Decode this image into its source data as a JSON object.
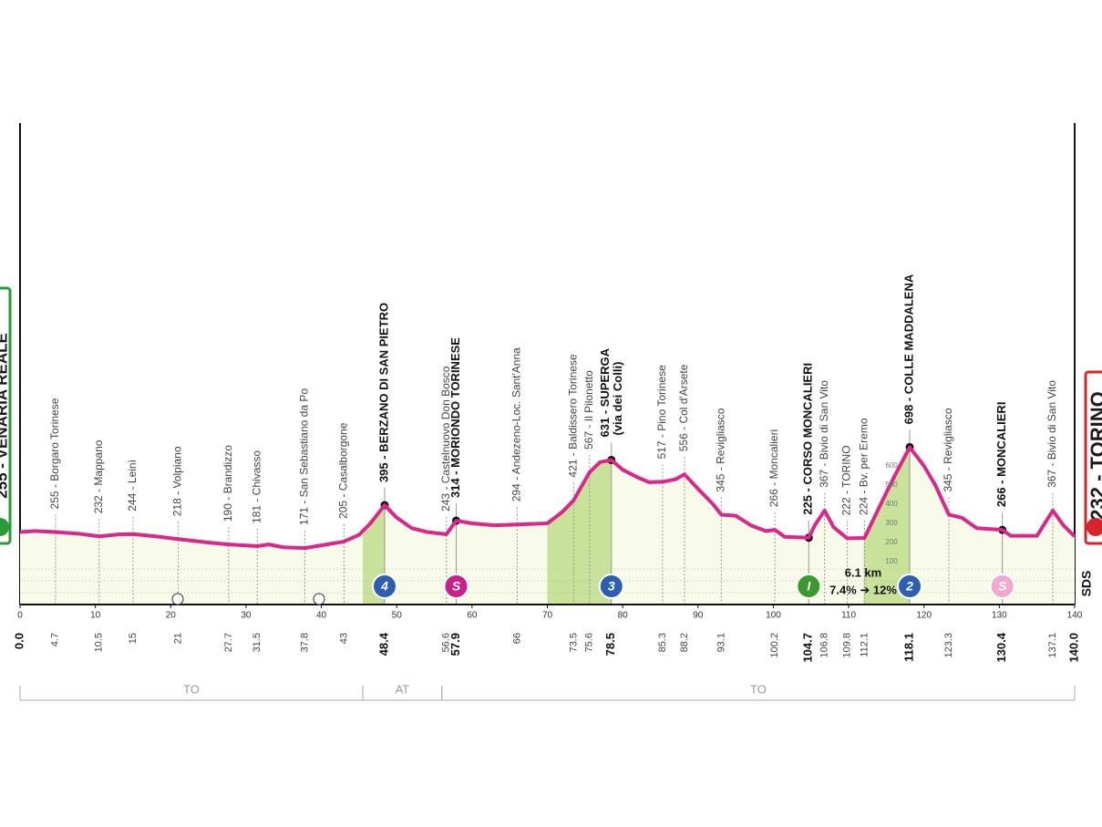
{
  "chart_data": {
    "type": "line",
    "start_name": "255 - VENARIA REALE",
    "finish_name": "232 - TORINO",
    "logo": "SDS",
    "xlim": [
      0,
      140
    ],
    "xticks": [
      0,
      10,
      20,
      30,
      40,
      50,
      60,
      70,
      80,
      90,
      100,
      110,
      120,
      130,
      140
    ],
    "alt_ticks": [
      100,
      200,
      300,
      400,
      500,
      600
    ],
    "line_color": "#d9278a",
    "profile": {
      "x": [
        0,
        2,
        4.7,
        8,
        10.5,
        13,
        15,
        18,
        21,
        25,
        27.7,
        31.5,
        33,
        35,
        37.8,
        40,
        43,
        45,
        46.5,
        48.4,
        50,
        52,
        54,
        56.6,
        57.9,
        60,
        63,
        66,
        70,
        72,
        73.5,
        75.6,
        77,
        78.5,
        80,
        82,
        83.5,
        85.3,
        87,
        88.2,
        90,
        92,
        93.1,
        95,
        97,
        99,
        100.2,
        101.5,
        104.7,
        105.5,
        106.8,
        108,
        109.8,
        112.1,
        114,
        116,
        118.1,
        120,
        121.5,
        123.3,
        125,
        127,
        130.4,
        131.5,
        135,
        137.1,
        138.5,
        140
      ],
      "values": [
        255,
        260,
        255,
        245,
        232,
        242,
        244,
        232,
        218,
        200,
        190,
        181,
        190,
        175,
        171,
        185,
        205,
        240,
        300,
        395,
        330,
        275,
        255,
        243,
        314,
        300,
        290,
        294,
        300,
        360,
        421,
        567,
        620,
        631,
        580,
        540,
        515,
        517,
        530,
        556,
        480,
        400,
        345,
        340,
        290,
        260,
        266,
        230,
        225,
        290,
        367,
        280,
        222,
        224,
        380,
        540,
        698,
        600,
        500,
        345,
        330,
        275,
        266,
        235,
        235,
        367,
        290,
        232
      ]
    },
    "climbs": [
      {
        "from": 45.5,
        "to": 48.4
      },
      {
        "from": 70,
        "to": 78.5
      },
      {
        "from": 112,
        "to": 118.1
      }
    ],
    "waypoints": [
      {
        "km": {
          "value": 0,
          "label": "0.0"
        },
        "bold": true
      },
      {
        "km": 4.7,
        "label": "255 - Borgaro Torinese"
      },
      {
        "km": 10.5,
        "label": "232 - Mappano"
      },
      {
        "km": 15.0,
        "label": "244 - Leinì"
      },
      {
        "km": 21.0,
        "label": "218 - Volpiano"
      },
      {
        "km": 27.7,
        "label": "190 - Brandizzo"
      },
      {
        "km": 31.5,
        "label": "181 - Chivasso"
      },
      {
        "km": 37.8,
        "label": "171 - San Sebastiano da Po"
      },
      {
        "km": 43.0,
        "label": "205 - Casalborgone"
      },
      {
        "km": 48.4,
        "label": "395 - BERZANO DI SAN PIETRO",
        "bold": true
      },
      {
        "km": 56.6,
        "label": "243 - Castelnuovo Don Bosco"
      },
      {
        "km": 57.9,
        "label": "314 - MORIONDO TORINESE",
        "bold": true
      },
      {
        "km": 66.0,
        "label": "294 - Andezeno-Loc. Sant'Anna"
      },
      {
        "km": 73.5,
        "label": "421 - Baldissero Torinese"
      },
      {
        "km": 75.6,
        "label": "567 - Il Pilonetto"
      },
      {
        "km": 78.5,
        "label": "631 - SUPERGA",
        "sub": "(via dei Colli)",
        "bold": true
      },
      {
        "km": 85.3,
        "label": "517 - Pino Torinese"
      },
      {
        "km": 88.2,
        "label": "556 - Col d'Arsete"
      },
      {
        "km": 93.1,
        "label": "345 - Revigliasco"
      },
      {
        "km": 100.2,
        "label": "266 - Moncalieri"
      },
      {
        "km": 104.7,
        "label": "225 - CORSO MONCALIERI",
        "bold": true
      },
      {
        "km": 106.8,
        "label": "367 - Bivio di San Vito"
      },
      {
        "km": 109.8,
        "label": "222 - TORINO"
      },
      {
        "km": 112.1,
        "label": "224 - Bv. per Eremo"
      },
      {
        "km": 118.1,
        "label": "698 - COLLE MADDALENA",
        "bold": true
      },
      {
        "km": 123.3,
        "label": "345 - Revigliasco"
      },
      {
        "km": 130.4,
        "label": "266 - MONCALIERI",
        "bold": true
      },
      {
        "km": 137.1,
        "label": "367 - Bivio di San Vito"
      },
      {
        "km": {
          "value": 140,
          "label": "140.0"
        },
        "bold": true
      }
    ],
    "markers": [
      {
        "km": 48.4,
        "text": "4",
        "color": "#2d5fae"
      },
      {
        "km": 57.9,
        "text": "S",
        "color": "#c8208a"
      },
      {
        "km": 78.5,
        "text": "3",
        "color": "#2d5fae"
      },
      {
        "km": 104.7,
        "text": "I",
        "color": "#3a9a2e"
      },
      {
        "km": 118.1,
        "text": "2",
        "color": "#2d5fae"
      },
      {
        "km": 130.4,
        "text": "S",
        "color": "#f2a9cf"
      }
    ],
    "climb_info": {
      "length": "6.1 km",
      "gradient": "7.4% ➔ 12%"
    },
    "regions": [
      {
        "from": 0,
        "to": 45.5,
        "label": "TO"
      },
      {
        "from": 45.5,
        "to": 56.0,
        "label": "AT"
      },
      {
        "from": 56.0,
        "to": 140,
        "label": "TO"
      }
    ]
  }
}
